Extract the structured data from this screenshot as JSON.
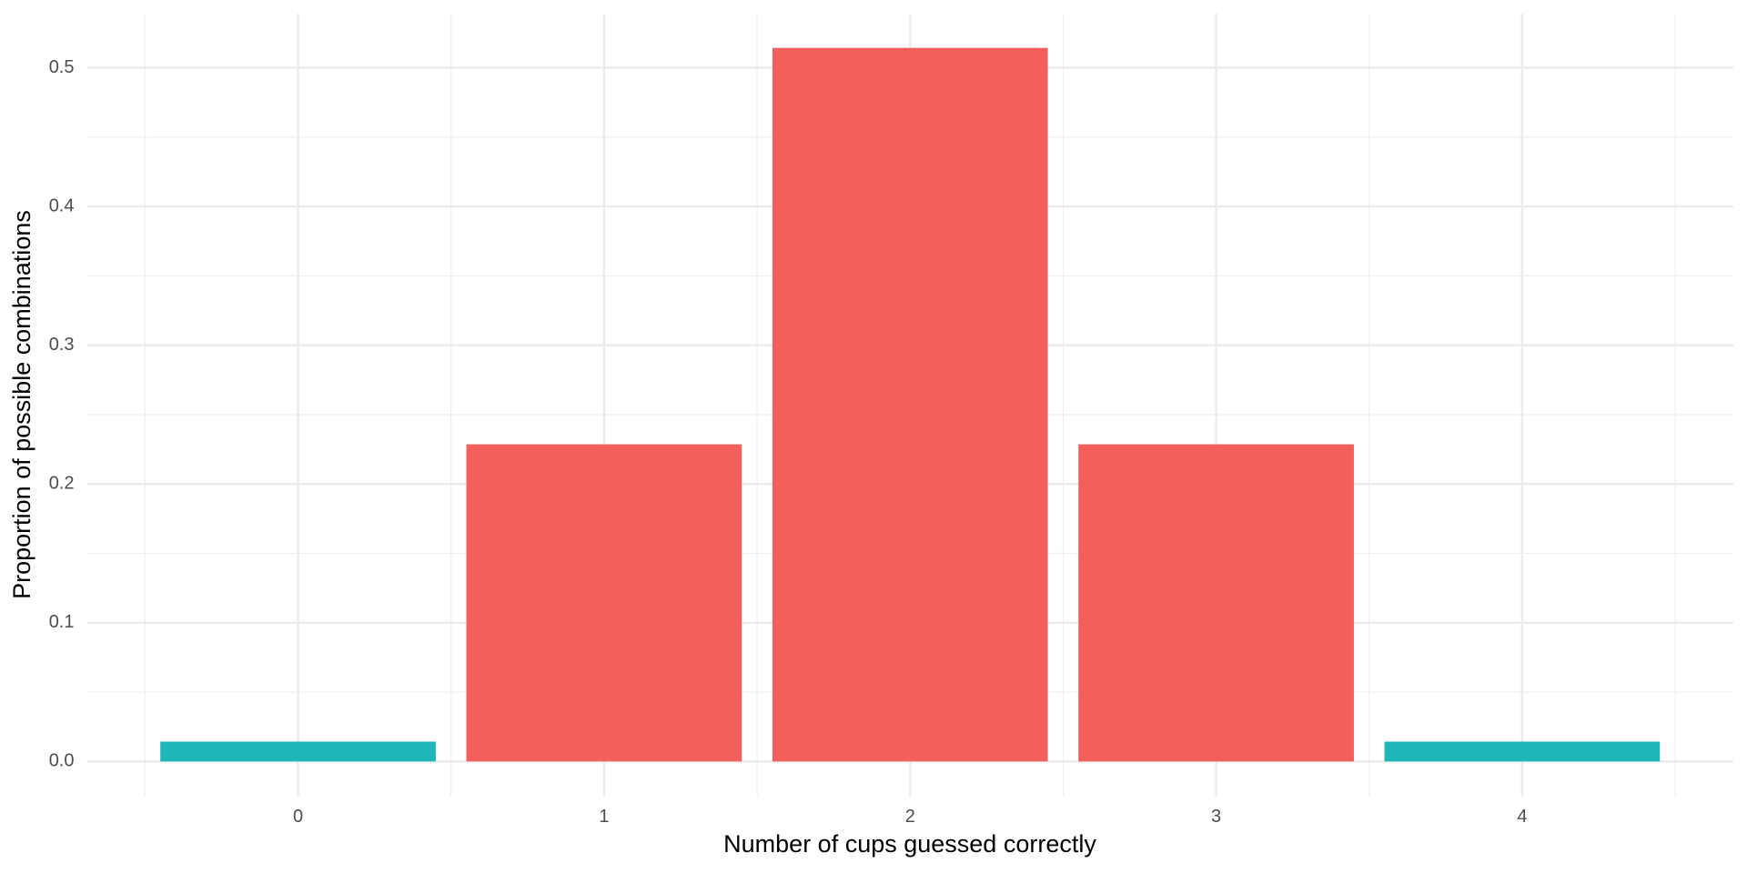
{
  "chart_data": {
    "type": "bar",
    "x_label": "Number of cups guessed correctly",
    "y_label": "Proportion of possible combinations",
    "categories": [
      "0",
      "1",
      "2",
      "3",
      "4"
    ],
    "values": [
      0.0143,
      0.2286,
      0.5143,
      0.2286,
      0.0143
    ],
    "colors": [
      "#1eb6b9",
      "#f25f5c",
      "#f25f5c",
      "#f25f5c",
      "#1eb6b9"
    ],
    "ylim": [
      -0.025,
      0.539
    ],
    "yticks": [
      {
        "value": 0,
        "label": "0.0"
      },
      {
        "value": 0.1,
        "label": "0.1"
      },
      {
        "value": 0.2,
        "label": "0.2"
      },
      {
        "value": 0.3,
        "label": "0.3"
      },
      {
        "value": 0.4,
        "label": "0.4"
      },
      {
        "value": 0.5,
        "label": "0.5"
      }
    ],
    "grid": true
  }
}
